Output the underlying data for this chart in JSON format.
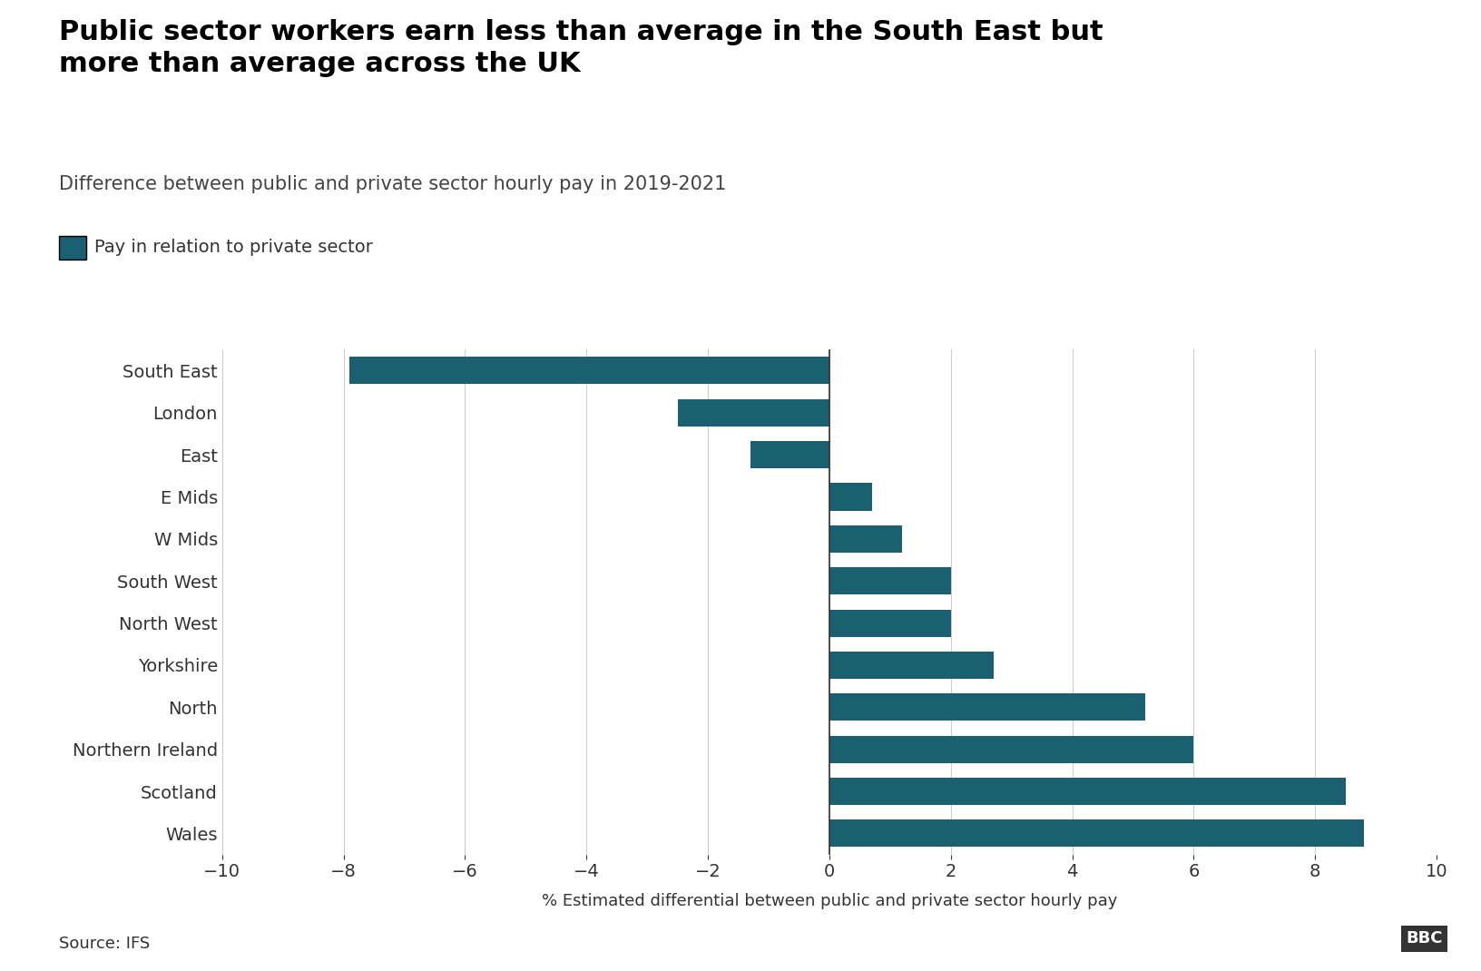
{
  "title": "Public sector workers earn less than average in the South East but\nmore than average across the UK",
  "subtitle": "Difference between public and private sector hourly pay in 2019-2021",
  "legend_label": "Pay in relation to private sector",
  "xlabel": "% Estimated differential between public and private sector hourly pay",
  "source": "Source: IFS",
  "categories": [
    "South East",
    "London",
    "East",
    "E Mids",
    "W Mids",
    "South West",
    "North West",
    "Yorkshire",
    "North",
    "Northern Ireland",
    "Scotland",
    "Wales"
  ],
  "values": [
    -7.9,
    -2.5,
    -1.3,
    0.7,
    1.2,
    2.0,
    2.0,
    2.7,
    5.2,
    6.0,
    8.5,
    8.8
  ],
  "bar_color": "#1a6070",
  "background_color": "#ffffff",
  "xlim": [
    -10,
    10
  ],
  "xticks": [
    -10,
    -8,
    -6,
    -4,
    -2,
    0,
    2,
    4,
    6,
    8,
    10
  ],
  "title_fontsize": 22,
  "subtitle_fontsize": 15,
  "legend_fontsize": 14,
  "tick_fontsize": 14,
  "xlabel_fontsize": 13,
  "source_fontsize": 13
}
